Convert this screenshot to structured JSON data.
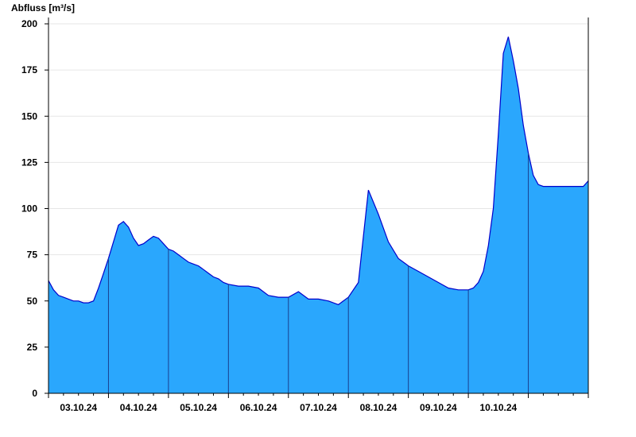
{
  "chart_data": {
    "type": "area",
    "ylabel": "Abfluss [m³/s]",
    "ylim": [
      0,
      200
    ],
    "yticks": [
      0,
      25,
      50,
      75,
      100,
      125,
      150,
      175,
      200
    ],
    "x_start": "02.10.24 00:00",
    "x_end": "10.10.24 24:00",
    "xtick_labels": [
      "03.10.24",
      "04.10.24",
      "05.10.24",
      "06.10.24",
      "07.10.24",
      "08.10.24",
      "09.10.24",
      "10.10.24"
    ],
    "grid": true,
    "colors": {
      "fill": "#2aa7fd",
      "line": "#0000cc",
      "grid": "#e6e6e6",
      "axis": "#000000"
    },
    "series": [
      {
        "x_hours": [
          0,
          2,
          4,
          6,
          8,
          10,
          12,
          14,
          16,
          18,
          20,
          22,
          24,
          26,
          28,
          30,
          32,
          34,
          36,
          38,
          40,
          42,
          44,
          46,
          48,
          50,
          52,
          54,
          56,
          58,
          60,
          62,
          64,
          66,
          68,
          70,
          72,
          76,
          80,
          84,
          88,
          92,
          96,
          100,
          104,
          108,
          112,
          116,
          120,
          124,
          128,
          132,
          136,
          140,
          144,
          148,
          152,
          156,
          160,
          164,
          168,
          170,
          172,
          174,
          176,
          178,
          180,
          182,
          184,
          186,
          188,
          190,
          192,
          194,
          196,
          198,
          200,
          202,
          204,
          206,
          208,
          210,
          212,
          214,
          216
        ],
        "values": [
          61,
          56,
          53,
          52,
          51,
          50,
          50,
          49,
          49,
          50,
          57,
          65,
          73,
          82,
          91,
          93,
          90,
          84,
          80,
          81,
          83,
          85,
          84,
          81,
          78,
          77,
          75,
          73,
          71,
          70,
          69,
          67,
          65,
          63,
          62,
          60,
          59,
          58,
          58,
          57,
          53,
          52,
          52,
          55,
          51,
          51,
          50,
          48,
          52,
          60,
          110,
          97,
          82,
          73,
          69,
          66,
          63,
          60,
          57,
          56,
          56,
          57,
          60,
          66,
          80,
          100,
          140,
          184,
          193,
          180,
          165,
          145,
          130,
          118,
          113,
          112,
          112,
          112,
          112,
          112,
          112,
          112,
          112,
          112,
          115
        ]
      }
    ]
  }
}
